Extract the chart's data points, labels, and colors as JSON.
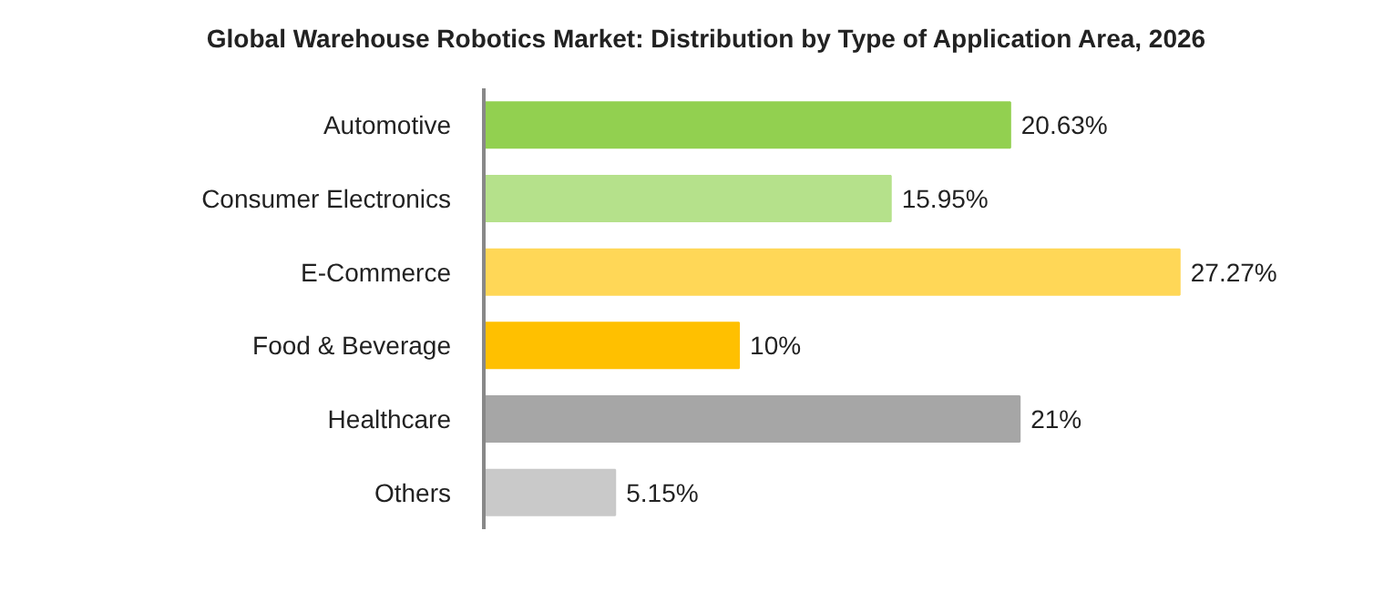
{
  "chart_data": {
    "type": "bar",
    "orientation": "horizontal",
    "title": "Global Warehouse Robotics Market: Distribution by Type of Application Area, 2026",
    "categories": [
      "Automotive",
      "Consumer Electronics",
      "E-Commerce",
      "Food & Beverage",
      "Healthcare",
      "Others"
    ],
    "values": [
      20.63,
      15.95,
      27.27,
      10,
      21,
      5.15
    ],
    "value_labels": [
      "20.63%",
      "15.95%",
      "27.27%",
      "10%",
      "21%",
      "5.15%"
    ],
    "colors": [
      "#92d050",
      "#b5e18b",
      "#ffd757",
      "#ffc000",
      "#a6a6a6",
      "#c9c9c9"
    ],
    "grid": false,
    "legend": false
  }
}
